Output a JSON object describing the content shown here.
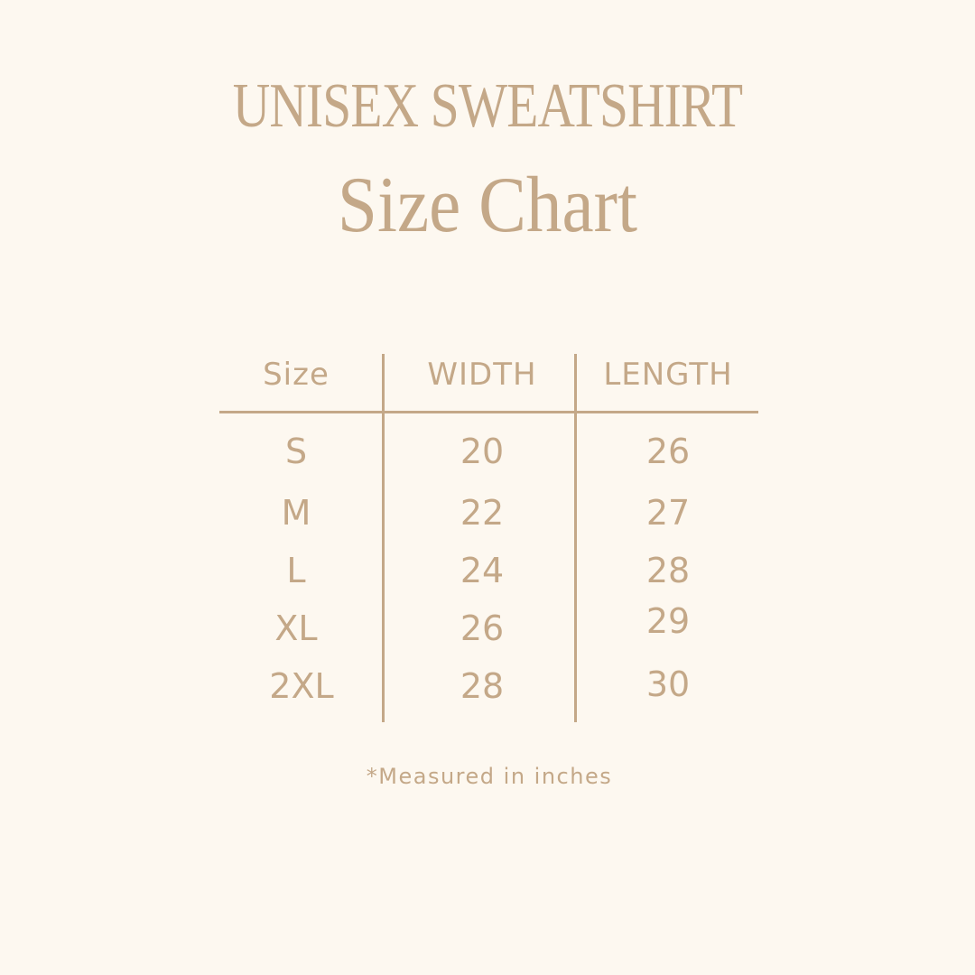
{
  "title": "UNISEX SWEATSHIRT",
  "subtitle": "Size Chart",
  "table": {
    "headers": [
      "Size",
      "WIDTH",
      "LENGTH"
    ],
    "rows": [
      [
        "S",
        "20",
        "26"
      ],
      [
        "M",
        "22",
        "27"
      ],
      [
        "L",
        "24",
        "28"
      ],
      [
        "XL",
        "26",
        "29"
      ],
      [
        "2XL",
        "28",
        "30"
      ]
    ]
  },
  "footnote": "*Measured in inches",
  "colors": {
    "text": "#c4a888",
    "background": "#fdf8f0"
  }
}
